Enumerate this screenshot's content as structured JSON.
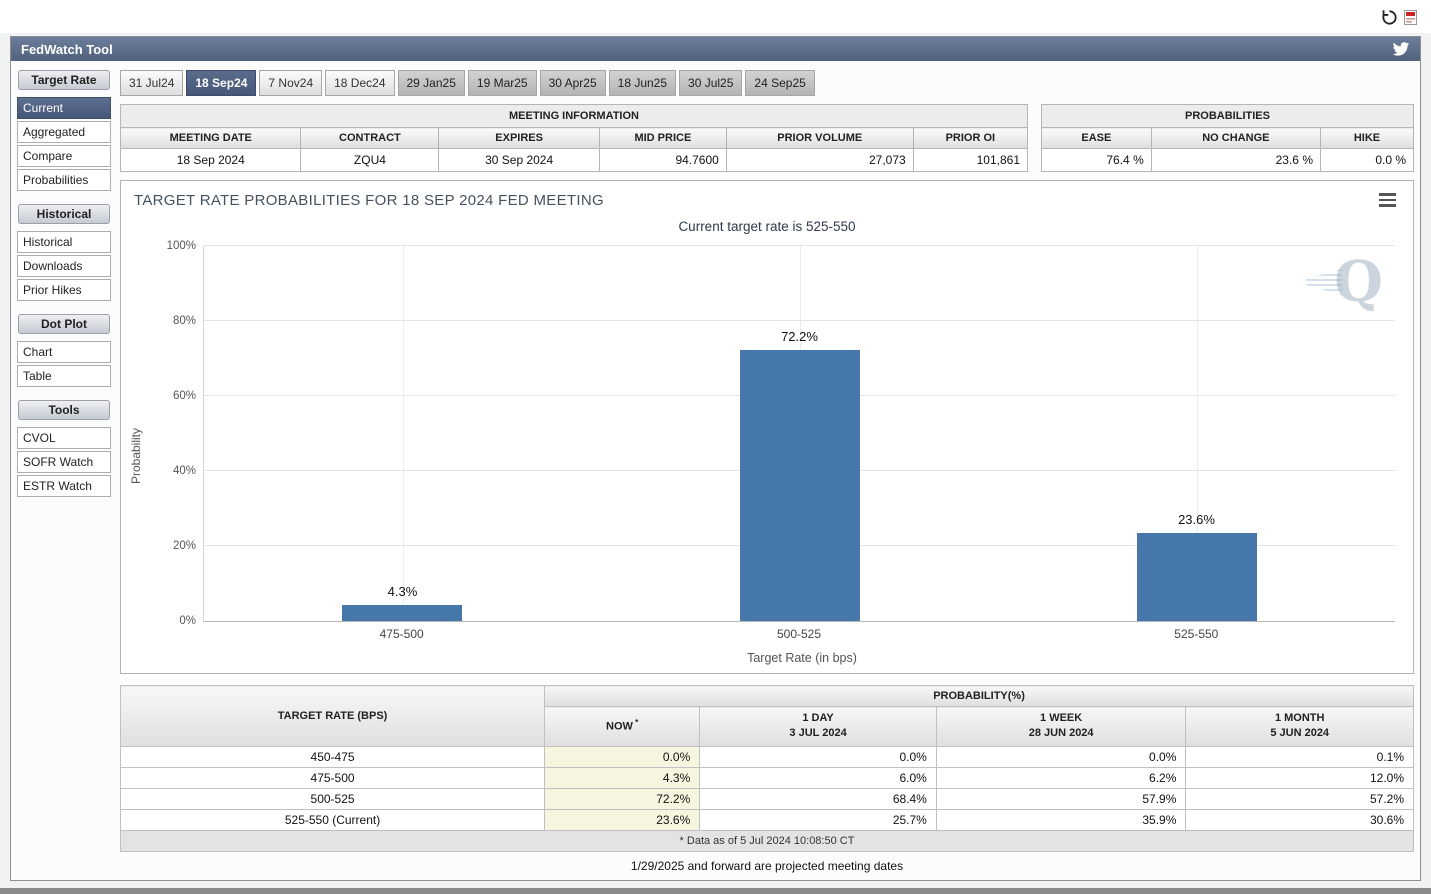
{
  "titlebar": {
    "title": "FedWatch Tool"
  },
  "icons": {
    "refresh": "circular-arrow",
    "plugin": "red-document",
    "twitter": "twitter-bird",
    "chart_menu": "hamburger"
  },
  "sidebar": {
    "sections": [
      {
        "header": "Target Rate",
        "selected": "Current",
        "items": [
          "Current",
          "Aggregated",
          "Compare",
          "Probabilities"
        ]
      },
      {
        "header": "Historical",
        "items": [
          "Historical",
          "Downloads",
          "Prior Hikes"
        ]
      },
      {
        "header": "Dot Plot",
        "items": [
          "Chart",
          "Table"
        ]
      },
      {
        "header": "Tools",
        "items": [
          "CVOL",
          "SOFR Watch",
          "ESTR Watch"
        ]
      }
    ]
  },
  "tabs": [
    {
      "label": "31 Jul24",
      "state": "normal"
    },
    {
      "label": "18 Sep24",
      "state": "selected"
    },
    {
      "label": "7 Nov24",
      "state": "normal"
    },
    {
      "label": "18 Dec24",
      "state": "normal"
    },
    {
      "label": "29 Jan25",
      "state": "projected"
    },
    {
      "label": "19 Mar25",
      "state": "projected"
    },
    {
      "label": "30 Apr25",
      "state": "projected"
    },
    {
      "label": "18 Jun25",
      "state": "projected"
    },
    {
      "label": "30 Jul25",
      "state": "projected"
    },
    {
      "label": "24 Sep25",
      "state": "projected"
    }
  ],
  "meeting_info": {
    "title": "MEETING INFORMATION",
    "columns": [
      "MEETING DATE",
      "CONTRACT",
      "EXPIRES",
      "MID PRICE",
      "PRIOR VOLUME",
      "PRIOR OI"
    ],
    "values": [
      "18 Sep 2024",
      "ZQU4",
      "30 Sep 2024",
      "94.7600",
      "27,073",
      "101,861"
    ],
    "numeric_from": 3
  },
  "probabilities_summary": {
    "title": "PROBABILITIES",
    "columns": [
      "EASE",
      "NO CHANGE",
      "HIKE"
    ],
    "values": [
      "76.4 %",
      "23.6 %",
      "0.0 %"
    ],
    "numeric_from": 0
  },
  "chart_data": {
    "type": "bar",
    "title": "TARGET RATE PROBABILITIES FOR 18 SEP 2024 FED MEETING",
    "subtitle": "Current target rate is 525-550",
    "categories": [
      "475-500",
      "500-525",
      "525-550"
    ],
    "values": [
      4.3,
      72.2,
      23.6
    ],
    "value_labels": [
      "4.3%",
      "72.2%",
      "23.6%"
    ],
    "xlabel": "Target Rate (in bps)",
    "ylabel": "Probability",
    "ylim": [
      0,
      100
    ],
    "yticks": [
      "0%",
      "20%",
      "40%",
      "60%",
      "80%",
      "100%"
    ],
    "grid": true,
    "legend": "none",
    "bar_color": "#4677ab",
    "watermark": "Q"
  },
  "probability_table": {
    "rate_header": "TARGET RATE (BPS)",
    "group_header": "PROBABILITY(%)",
    "columns": [
      {
        "label": "NOW",
        "sup": "*",
        "sublabel": ""
      },
      {
        "label": "1 DAY",
        "sublabel": "3 JUL 2024"
      },
      {
        "label": "1 WEEK",
        "sublabel": "28 JUN 2024"
      },
      {
        "label": "1 MONTH",
        "sublabel": "5 JUN 2024"
      }
    ],
    "rows": [
      {
        "rate": "450-475",
        "values": [
          "0.0%",
          "0.0%",
          "0.0%",
          "0.1%"
        ]
      },
      {
        "rate": "475-500",
        "values": [
          "4.3%",
          "6.0%",
          "6.2%",
          "12.0%"
        ]
      },
      {
        "rate": "500-525",
        "values": [
          "72.2%",
          "68.4%",
          "57.9%",
          "57.2%"
        ]
      },
      {
        "rate": "525-550 (Current)",
        "values": [
          "23.6%",
          "25.7%",
          "35.9%",
          "30.6%"
        ]
      }
    ],
    "footnote": "* Data as of 5 Jul 2024 10:08:50 CT"
  },
  "footer_note": "1/29/2025 and forward are projected meeting dates",
  "colors": {
    "bar": "#4677ab",
    "titlebar_bg": "#5c6f8d",
    "selected_nav_bg": "#4d5f80",
    "now_column_bg": "#f6f6e0"
  }
}
